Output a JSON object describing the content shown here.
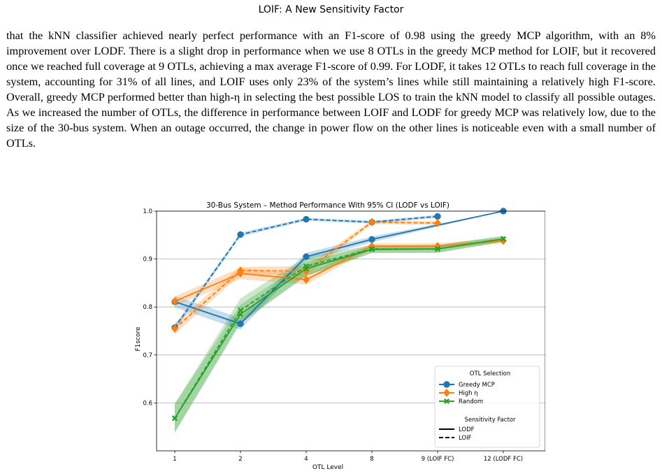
{
  "header": {
    "title": "LOIF: A New Sensitivity Factor"
  },
  "paragraph": "that the kNN classifier achieved nearly perfect performance with an F1-score of 0.98 using the greedy MCP algorithm, with an 8% improvement over LODF. There is a slight drop in performance when we use 8 OTLs in the greedy MCP method for LOIF, but it recovered once we reached full coverage at 9 OTLs, achieving a max average F1-score of 0.99. For LODF, it takes 12 OTLs to reach full coverage in the system, accounting for 31% of all lines, and LOIF uses only 23% of the system’s lines while still maintaining a relatively high F1-score. Overall, greedy MCP performed better than high-η in selecting the best possible LOS to train the kNN model to classify all possible outages. As we increased the number of OTLs, the difference in performance between LOIF and LODF for greedy MCP was relatively low, due to the size of the 30-bus system. When an outage occurred, the change in power flow on the other lines is noticeable even with a small number of OTLs.",
  "chart_data": {
    "type": "line",
    "title": "30-Bus System – Method Performance With 95% CI (LODF vs LOIF)",
    "xlabel": "OTL Level",
    "ylabel": "F1score",
    "categories": [
      "1",
      "2",
      "4",
      "8",
      "9 (LOIF FC)",
      "12 (LODF FC)"
    ],
    "ylim": [
      0.5,
      1.0
    ],
    "yticks": [
      "0.6",
      "0.7",
      "0.8",
      "0.9",
      "1.0"
    ],
    "grid": "horizontal",
    "legend_position": "lower-right",
    "legend": {
      "title": "OTL Selection",
      "methods": [
        "Greedy MCP",
        "High η",
        "Random"
      ],
      "factor_title": "Sensitivity Factor",
      "factors": [
        "LODF",
        "LOIF"
      ]
    },
    "colors": {
      "Greedy MCP": "#1f77b4",
      "High η": "#ff7f0e",
      "Random": "#2ca02c"
    },
    "series": [
      {
        "name": "Greedy MCP",
        "factor": "LODF",
        "x": [
          0,
          1,
          2,
          3,
          5
        ],
        "values": [
          0.811,
          0.765,
          0.905,
          0.941,
          1.0
        ],
        "ci": [
          0.012,
          0.012,
          0.008,
          0.006,
          0.0
        ]
      },
      {
        "name": "Greedy MCP",
        "factor": "LOIF",
        "x": [
          0,
          1,
          2,
          3,
          4
        ],
        "values": [
          0.757,
          0.951,
          0.983,
          0.977,
          0.989
        ],
        "ci": [
          0.006,
          0.004,
          0.003,
          0.003,
          0.003
        ]
      },
      {
        "name": "High η",
        "factor": "LODF",
        "x": [
          0,
          1,
          2,
          3,
          4,
          5
        ],
        "values": [
          0.812,
          0.87,
          0.857,
          0.927,
          0.927,
          0.938
        ],
        "ci": [
          0.01,
          0.012,
          0.01,
          0.006,
          0.006,
          0.005
        ]
      },
      {
        "name": "High η",
        "factor": "LOIF",
        "x": [
          0,
          1,
          2,
          3,
          4
        ],
        "values": [
          0.755,
          0.876,
          0.875,
          0.977,
          0.975
        ],
        "ci": [
          0.012,
          0.008,
          0.01,
          0.004,
          0.004
        ]
      },
      {
        "name": "Random",
        "factor": "LODF",
        "x": [
          0,
          1,
          2,
          3,
          4,
          5
        ],
        "values": [
          0.568,
          0.785,
          0.88,
          0.92,
          0.921,
          0.942
        ],
        "ci": [
          0.03,
          0.02,
          0.015,
          0.008,
          0.008,
          0.006
        ]
      },
      {
        "name": "Random",
        "factor": "LOIF",
        "x": [
          0,
          1,
          2,
          3,
          4,
          5
        ],
        "values": [
          0.568,
          0.793,
          0.885,
          0.921,
          0.921,
          0.942
        ],
        "ci": [
          0.03,
          0.025,
          0.02,
          0.008,
          0.008,
          0.006
        ]
      }
    ]
  }
}
